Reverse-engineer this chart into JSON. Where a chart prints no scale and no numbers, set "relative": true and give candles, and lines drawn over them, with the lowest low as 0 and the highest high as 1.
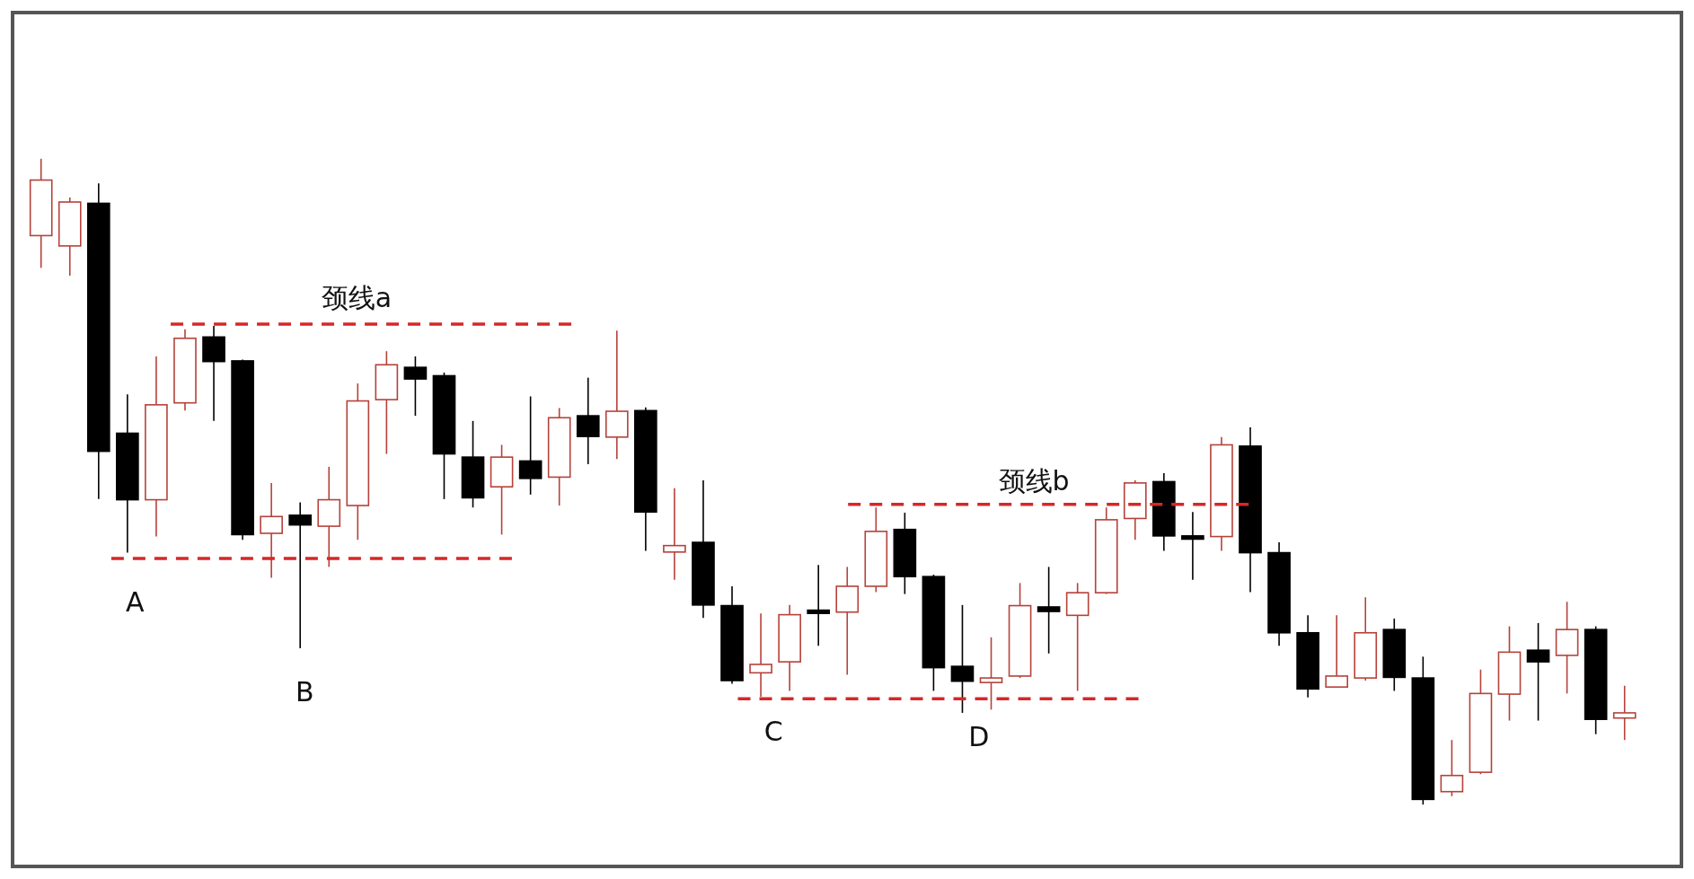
{
  "chart_data": {
    "type": "candlestick",
    "relative": true,
    "categories": [
      null,
      null,
      null,
      null,
      null,
      null,
      null,
      null,
      null,
      null,
      null,
      null,
      null,
      null,
      null,
      null,
      null,
      null,
      null,
      null,
      null,
      null,
      null,
      null,
      null,
      null,
      null,
      null,
      null,
      null,
      null,
      null,
      null,
      null,
      null,
      null,
      null,
      null,
      null,
      null,
      null,
      null,
      null,
      null,
      null,
      null,
      null,
      null,
      null,
      null,
      null,
      null,
      null,
      null,
      null,
      null
    ],
    "ohlc": [
      [
        0.881,
        1,
        0.831,
        0.967
      ],
      [
        0.865,
        0.94,
        0.819,
        0.933
      ],
      [
        0.931,
        0.962,
        0.473,
        0.547
      ],
      [
        0.575,
        0.635,
        0.39,
        0.472
      ],
      [
        0.472,
        0.694,
        0.415,
        0.619
      ],
      [
        0.622,
        0.736,
        0.61,
        0.722
      ],
      [
        0.724,
        0.741,
        0.594,
        0.686
      ],
      [
        0.687,
        0.689,
        0.41,
        0.418
      ],
      [
        0.42,
        0.498,
        0.351,
        0.446
      ],
      [
        0.448,
        0.468,
        0.242,
        0.433
      ],
      [
        0.431,
        0.523,
        0.368,
        0.472
      ],
      [
        0.463,
        0.652,
        0.41,
        0.625
      ],
      [
        0.627,
        0.702,
        0.543,
        0.681
      ],
      [
        0.677,
        0.694,
        0.602,
        0.659
      ],
      [
        0.664,
        0.669,
        0.473,
        0.543
      ],
      [
        0.538,
        0.594,
        0.46,
        0.475
      ],
      [
        0.492,
        0.557,
        0.418,
        0.538
      ],
      [
        0.532,
        0.632,
        0.48,
        0.505
      ],
      [
        0.507,
        0.614,
        0.463,
        0.599
      ],
      [
        0.602,
        0.661,
        0.527,
        0.57
      ],
      [
        0.569,
        0.734,
        0.535,
        0.609
      ],
      [
        0.61,
        0.615,
        0.393,
        0.453
      ],
      [
        0.391,
        0.49,
        0.348,
        0.401
      ],
      [
        0.406,
        0.502,
        0.289,
        0.309
      ],
      [
        0.308,
        0.338,
        0.187,
        0.192
      ],
      [
        0.204,
        0.296,
        0.167,
        0.217
      ],
      [
        0.221,
        0.309,
        0.176,
        0.294
      ],
      [
        0.301,
        0.371,
        0.246,
        0.296
      ],
      [
        0.298,
        0.368,
        0.201,
        0.338
      ],
      [
        0.338,
        0.46,
        0.329,
        0.423
      ],
      [
        0.426,
        0.452,
        0.326,
        0.353
      ],
      [
        0.353,
        0.356,
        0.176,
        0.212
      ],
      [
        0.214,
        0.309,
        0.142,
        0.191
      ],
      [
        0.189,
        0.259,
        0.147,
        0.196
      ],
      [
        0.199,
        0.343,
        0.196,
        0.308
      ],
      [
        0.306,
        0.368,
        0.234,
        0.299
      ],
      [
        0.293,
        0.343,
        0.176,
        0.328
      ],
      [
        0.328,
        0.46,
        0.326,
        0.441
      ],
      [
        0.443,
        0.502,
        0.41,
        0.498
      ],
      [
        0.5,
        0.513,
        0.393,
        0.416
      ],
      [
        0.416,
        0.453,
        0.348,
        0.411
      ],
      [
        0.415,
        0.569,
        0.393,
        0.557
      ],
      [
        0.555,
        0.584,
        0.329,
        0.39
      ],
      [
        0.39,
        0.406,
        0.246,
        0.266
      ],
      [
        0.266,
        0.293,
        0.166,
        0.179
      ],
      [
        0.182,
        0.293,
        0.181,
        0.199
      ],
      [
        0.196,
        0.321,
        0.192,
        0.266
      ],
      [
        0.271,
        0.288,
        0.176,
        0.197
      ],
      [
        0.196,
        0.229,
        0,
        0.008
      ],
      [
        0.02,
        0.1,
        0.013,
        0.045
      ],
      [
        0.05,
        0.209,
        0.047,
        0.172
      ],
      [
        0.171,
        0.276,
        0.13,
        0.236
      ],
      [
        0.239,
        0.281,
        0.13,
        0.221
      ],
      [
        0.231,
        0.314,
        0.172,
        0.271
      ],
      [
        0.271,
        0.276,
        0.109,
        0.132
      ],
      [
        0.134,
        0.184,
        0.1,
        0.142
      ]
    ],
    "ref_lines": [
      {
        "axis": "y",
        "value": 0.744,
        "label": "颈线a",
        "line_style": "dashed",
        "color": "#d62728"
      },
      {
        "axis": "y",
        "value": 0.381,
        "line_style": "dashed",
        "color": "#d62728"
      },
      {
        "axis": "y",
        "value": 0.465,
        "label": "颈线b",
        "line_style": "dashed",
        "color": "#d62728"
      },
      {
        "axis": "y",
        "value": 0.164,
        "line_style": "dashed",
        "color": "#d62728"
      }
    ],
    "annotations": [
      "A",
      "B",
      "C",
      "D"
    ]
  }
}
